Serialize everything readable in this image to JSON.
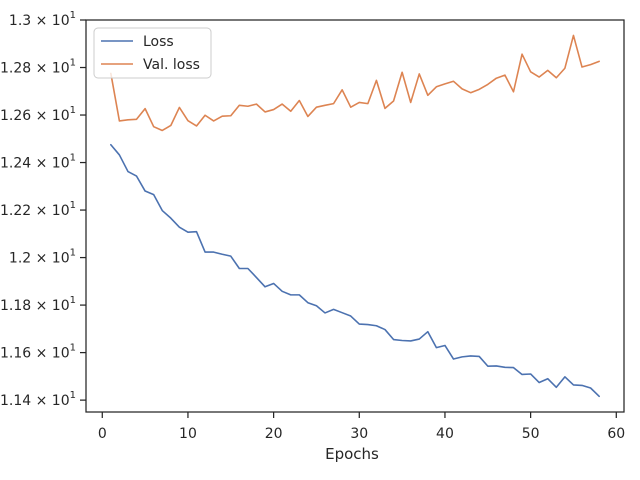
{
  "chart_data": {
    "type": "line",
    "title": "",
    "xlabel": "Epochs",
    "ylabel": "",
    "xlim": [
      -1.9,
      60.9
    ],
    "ylim": [
      11.35,
      13.0
    ],
    "grid": false,
    "legend_placement": "top-left",
    "x_ticks": [
      0,
      10,
      20,
      30,
      40,
      50,
      60
    ],
    "x_tick_labels": [
      "0",
      "10",
      "20",
      "30",
      "40",
      "50",
      "60"
    ],
    "y_ticks": [
      11.4,
      11.6,
      11.8,
      12.0,
      12.2,
      12.4,
      12.6,
      12.8,
      13.0
    ],
    "y_tick_labels": [
      {
        "mant": "1.14",
        "exp": "1"
      },
      {
        "mant": "1.16",
        "exp": "1"
      },
      {
        "mant": "1.18",
        "exp": "1"
      },
      {
        "mant": "1.2",
        "exp": "1"
      },
      {
        "mant": "1.22",
        "exp": "1"
      },
      {
        "mant": "1.24",
        "exp": "1"
      },
      {
        "mant": "1.26",
        "exp": "1"
      },
      {
        "mant": "1.28",
        "exp": "1"
      },
      {
        "mant": "1.3",
        "exp": "1"
      }
    ],
    "x": [
      1,
      2,
      3,
      4,
      5,
      6,
      7,
      8,
      9,
      10,
      11,
      12,
      13,
      14,
      15,
      16,
      17,
      18,
      19,
      20,
      21,
      22,
      23,
      24,
      25,
      26,
      27,
      28,
      29,
      30,
      31,
      32,
      33,
      34,
      35,
      36,
      37,
      38,
      39,
      40,
      41,
      42,
      43,
      44,
      45,
      46,
      47,
      48,
      49,
      50,
      51,
      52,
      53,
      54,
      55,
      56,
      57,
      58
    ],
    "series": [
      {
        "name": "Loss",
        "color": "#4c72b0",
        "values": [
          12.475,
          12.432,
          12.362,
          12.343,
          12.28,
          12.265,
          12.198,
          12.166,
          12.128,
          12.107,
          12.109,
          12.023,
          12.023,
          12.014,
          12.006,
          11.954,
          11.954,
          11.916,
          11.877,
          11.891,
          11.858,
          11.843,
          11.843,
          11.81,
          11.797,
          11.767,
          11.782,
          11.768,
          11.754,
          11.72,
          11.718,
          11.713,
          11.697,
          11.655,
          11.651,
          11.649,
          11.657,
          11.688,
          11.621,
          11.63,
          11.573,
          11.582,
          11.586,
          11.584,
          11.543,
          11.544,
          11.538,
          11.537,
          11.508,
          11.51,
          11.474,
          11.49,
          11.454,
          11.498,
          11.464,
          11.462,
          11.451,
          11.416
        ]
      },
      {
        "name": "Val. loss",
        "color": "#dd8452",
        "values": [
          12.775,
          12.575,
          12.58,
          12.582,
          12.627,
          12.551,
          12.535,
          12.556,
          12.632,
          12.576,
          12.554,
          12.599,
          12.575,
          12.595,
          12.597,
          12.641,
          12.637,
          12.646,
          12.613,
          12.623,
          12.646,
          12.616,
          12.661,
          12.594,
          12.633,
          12.641,
          12.648,
          12.706,
          12.633,
          12.653,
          12.648,
          12.746,
          12.628,
          12.659,
          12.78,
          12.653,
          12.773,
          12.683,
          12.719,
          12.731,
          12.742,
          12.71,
          12.694,
          12.708,
          12.729,
          12.755,
          12.768,
          12.698,
          12.856,
          12.782,
          12.76,
          12.788,
          12.757,
          12.797,
          12.935,
          12.802,
          12.812,
          12.826
        ]
      }
    ]
  }
}
